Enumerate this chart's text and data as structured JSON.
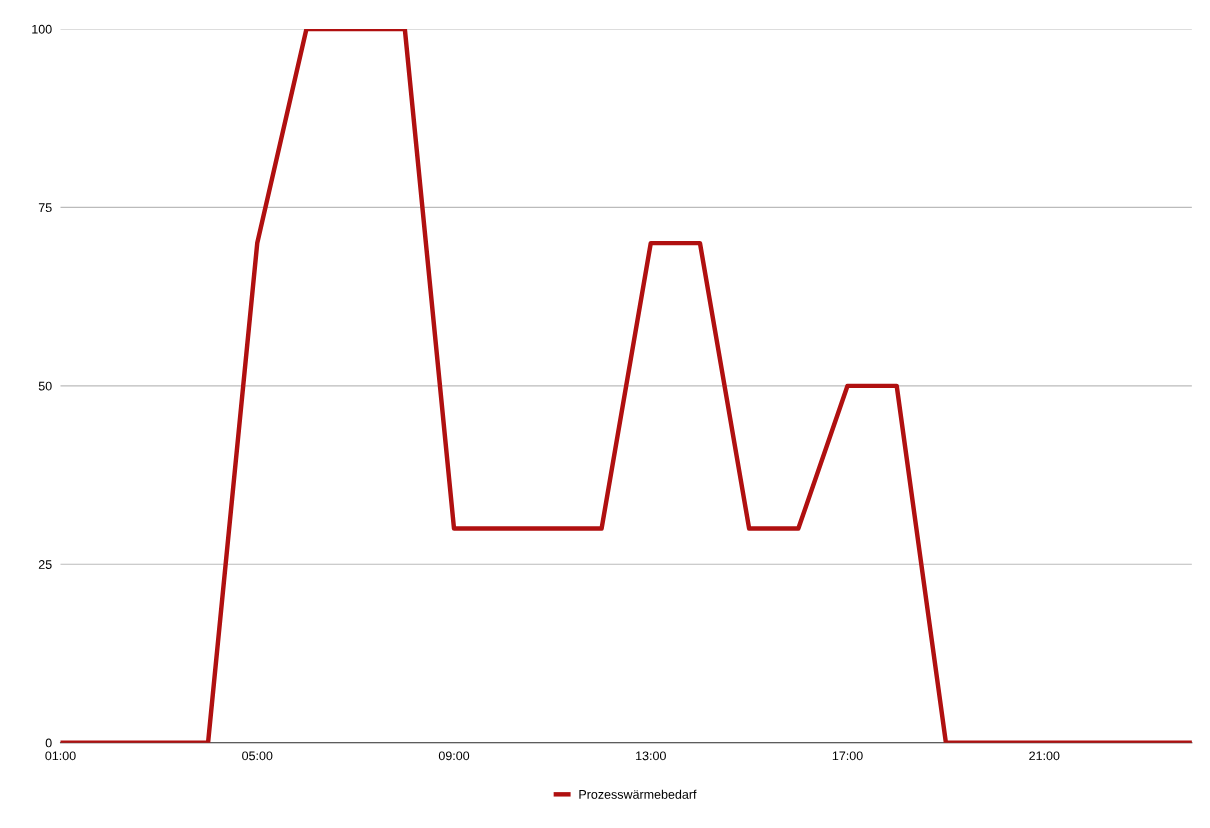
{
  "chart_data": {
    "type": "line",
    "x": [
      1,
      4,
      5,
      6,
      8,
      9,
      12,
      13,
      14,
      15,
      16,
      17,
      18,
      19,
      24
    ],
    "series": [
      {
        "name": "Prozesswärmebedarf",
        "color": "#b01010",
        "values": [
          0,
          0,
          70,
          100,
          100,
          30,
          30,
          70,
          70,
          30,
          30,
          50,
          50,
          0,
          0
        ]
      }
    ],
    "xlim": [
      1,
      24
    ],
    "xticks": [
      {
        "value": 1,
        "label": "01:00"
      },
      {
        "value": 5,
        "label": "05:00"
      },
      {
        "value": 9,
        "label": "09:00"
      },
      {
        "value": 13,
        "label": "13:00"
      },
      {
        "value": 17,
        "label": "17:00"
      },
      {
        "value": 21,
        "label": "21:00"
      }
    ],
    "ylim": [
      0,
      100
    ],
    "yticks": [
      0,
      25,
      50,
      75,
      100
    ],
    "grid": "y",
    "legend": "bottom",
    "marker": "none",
    "line_style": "solid"
  }
}
